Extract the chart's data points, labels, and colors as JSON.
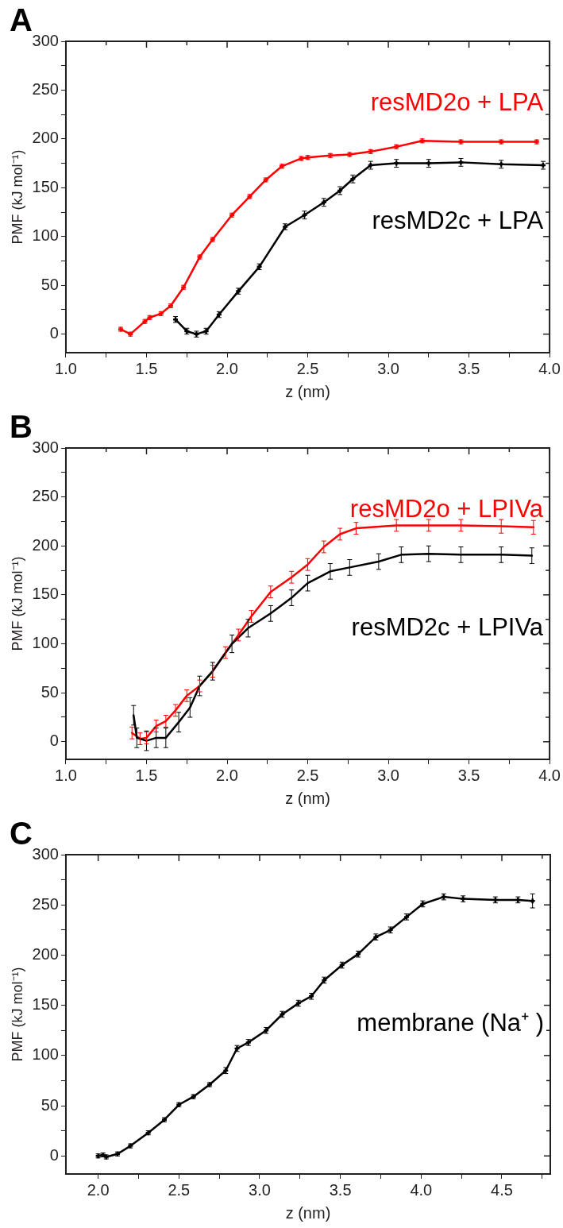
{
  "chart_data": [
    {
      "type": "line",
      "title": "A",
      "xlabel": "z (nm)",
      "ylabel": "PMF (kJ mol⁻¹)",
      "xlim": [
        1.0,
        4.0
      ],
      "ylim": [
        -19,
        300
      ],
      "xticks": [
        {
          "value": 1.0,
          "label": "1.0"
        },
        {
          "value": 1.25,
          "label": null
        },
        {
          "value": 1.5,
          "label": "1.5"
        },
        {
          "value": 1.75,
          "label": null
        },
        {
          "value": 2.0,
          "label": "2.0"
        },
        {
          "value": 2.25,
          "label": null
        },
        {
          "value": 2.5,
          "label": "2.5"
        },
        {
          "value": 2.75,
          "label": null
        },
        {
          "value": 3.0,
          "label": "3.0"
        },
        {
          "value": 3.25,
          "label": null
        },
        {
          "value": 3.5,
          "label": "3.5"
        },
        {
          "value": 3.75,
          "label": null
        },
        {
          "value": 4.0,
          "label": "4.0"
        }
      ],
      "yticks": [
        0,
        {
          "value": 25,
          "label": null
        },
        50,
        {
          "value": 75,
          "label": null
        },
        100,
        {
          "value": 125,
          "label": null
        },
        150,
        {
          "value": 175,
          "label": null
        },
        200,
        {
          "value": 225,
          "label": null
        },
        250,
        {
          "value": 275,
          "label": null
        },
        300
      ],
      "grid": false,
      "legend": false,
      "marker": "cross",
      "line_style": "solid",
      "series": [
        {
          "name": "resMD2o + LPA",
          "color": "#ff0000",
          "x": [
            1.34,
            1.4,
            1.49,
            1.52,
            1.59,
            1.65,
            1.73,
            1.83,
            1.91,
            2.03,
            2.14,
            2.24,
            2.34,
            2.46,
            2.5,
            2.64,
            2.76,
            2.89,
            3.05,
            3.21,
            3.45,
            3.7,
            3.92
          ],
          "values": [
            5,
            0,
            13,
            17,
            21,
            29,
            48,
            79,
            97,
            122,
            141,
            158,
            172,
            180,
            181,
            183,
            184,
            187,
            192,
            198,
            197,
            197,
            197
          ],
          "errors": [
            2,
            2,
            2,
            2,
            2,
            2,
            2,
            2,
            2,
            2,
            2,
            2,
            2,
            2,
            2,
            2,
            2,
            2,
            2,
            2,
            2,
            2,
            2
          ]
        },
        {
          "name": "resMD2c + LPA",
          "color": "#000000",
          "x": [
            1.68,
            1.75,
            1.81,
            1.87,
            1.95,
            2.07,
            2.2,
            2.36,
            2.48,
            2.6,
            2.7,
            2.78,
            2.89,
            3.05,
            3.25,
            3.45,
            3.7,
            3.96
          ],
          "values": [
            15,
            3,
            0,
            3,
            20,
            44,
            69,
            110,
            122,
            135,
            147,
            159,
            173,
            175,
            175,
            176,
            174,
            173
          ],
          "errors": [
            3,
            3,
            3,
            3,
            3,
            3,
            3,
            3,
            4,
            4,
            4,
            4,
            4,
            4,
            4,
            4,
            4,
            4
          ]
        }
      ]
    },
    {
      "type": "line",
      "title": "B",
      "xlabel": "z (nm)",
      "ylabel": "PMF (kJ mol⁻¹)",
      "xlim": [
        1.0,
        4.0
      ],
      "ylim": [
        -18,
        300
      ],
      "xticks": [
        {
          "value": 1.0,
          "label": "1.0"
        },
        {
          "value": 1.25,
          "label": null
        },
        {
          "value": 1.5,
          "label": "1.5"
        },
        {
          "value": 1.75,
          "label": null
        },
        {
          "value": 2.0,
          "label": "2.0"
        },
        {
          "value": 2.25,
          "label": null
        },
        {
          "value": 2.5,
          "label": "2.5"
        },
        {
          "value": 2.75,
          "label": null
        },
        {
          "value": 3.0,
          "label": "3.0"
        },
        {
          "value": 3.25,
          "label": null
        },
        {
          "value": 3.5,
          "label": "3.5"
        },
        {
          "value": 3.75,
          "label": null
        },
        {
          "value": 4.0,
          "label": "4.0"
        }
      ],
      "yticks": [
        0,
        {
          "value": 25,
          "label": null
        },
        50,
        {
          "value": 75,
          "label": null
        },
        100,
        {
          "value": 125,
          "label": null
        },
        150,
        {
          "value": 175,
          "label": null
        },
        200,
        {
          "value": 225,
          "label": null
        },
        250,
        {
          "value": 275,
          "label": null
        },
        300
      ],
      "grid": false,
      "legend": false,
      "line_style": "solid",
      "series": [
        {
          "name": "resMD2c + LPIVa",
          "color": "#000000",
          "x": [
            1.42,
            1.44,
            1.5,
            1.56,
            1.62,
            1.7,
            1.77,
            1.83,
            1.91,
            2.03,
            2.13,
            2.27,
            2.4,
            2.5,
            2.64,
            2.76,
            2.94,
            3.08,
            3.25,
            3.45,
            3.7,
            3.89
          ],
          "values": [
            27,
            4,
            1,
            4,
            4,
            20,
            35,
            57,
            72,
            100,
            116,
            131,
            147,
            162,
            174,
            178,
            184,
            191,
            192,
            191,
            191,
            190
          ],
          "errors": [
            10,
            10,
            10,
            10,
            10,
            10,
            10,
            10,
            9,
            9,
            9,
            8,
            8,
            8,
            8,
            8,
            8,
            8,
            8,
            8,
            8,
            8
          ]
        },
        {
          "name": "resMD2o + LPIVa",
          "color": "#ff0000",
          "x": [
            1.41,
            1.46,
            1.5,
            1.56,
            1.62,
            1.68,
            1.75,
            1.83,
            1.91,
            1.99,
            2.07,
            2.15,
            2.27,
            2.4,
            2.5,
            2.6,
            2.7,
            2.8,
            3.05,
            3.25,
            3.45,
            3.7,
            3.9
          ],
          "values": [
            9,
            3,
            4,
            16,
            21,
            32,
            47,
            57,
            72,
            91,
            109,
            128,
            153,
            168,
            181,
            199,
            212,
            218,
            221,
            221,
            221,
            220,
            219
          ],
          "errors": [
            6,
            6,
            6,
            6,
            6,
            6,
            6,
            6,
            6,
            6,
            6,
            6,
            6,
            6,
            6,
            6,
            6,
            6,
            6,
            6,
            6,
            7,
            7
          ]
        }
      ]
    },
    {
      "type": "line",
      "title": "C",
      "xlabel": "z (nm)",
      "ylabel": "PMF (kJ mol⁻¹)",
      "xlim": [
        1.8,
        4.8
      ],
      "ylim": [
        -18,
        300
      ],
      "xticks": [
        {
          "value": 2.0,
          "label": "2.0"
        },
        {
          "value": 2.25,
          "label": null
        },
        {
          "value": 2.5,
          "label": "2.5"
        },
        {
          "value": 2.75,
          "label": null
        },
        {
          "value": 3.0,
          "label": "3.0"
        },
        {
          "value": 3.25,
          "label": null
        },
        {
          "value": 3.5,
          "label": "3.5"
        },
        {
          "value": 3.75,
          "label": null
        },
        {
          "value": 4.0,
          "label": "4.0"
        },
        {
          "value": 4.25,
          "label": null
        },
        {
          "value": 4.5,
          "label": "4.5"
        },
        {
          "value": 4.75,
          "label": null
        }
      ],
      "yticks": [
        0,
        {
          "value": 25,
          "label": null
        },
        50,
        {
          "value": 75,
          "label": null
        },
        100,
        {
          "value": 125,
          "label": null
        },
        150,
        {
          "value": 175,
          "label": null
        },
        200,
        {
          "value": 225,
          "label": null
        },
        250,
        {
          "value": 275,
          "label": null
        },
        300
      ],
      "grid": false,
      "legend": false,
      "marker": "cross",
      "line_style": "solid",
      "series": [
        {
          "name": "membrane (Na⁺ )",
          "color": "#000000",
          "x": [
            2.0,
            2.03,
            2.05,
            2.12,
            2.2,
            2.31,
            2.41,
            2.5,
            2.59,
            2.69,
            2.79,
            2.86,
            2.93,
            3.04,
            3.14,
            3.24,
            3.32,
            3.4,
            3.51,
            3.61,
            3.72,
            3.81,
            3.91,
            4.01,
            4.14,
            4.26,
            4.46,
            4.6,
            4.69
          ],
          "values": [
            0,
            1,
            -1,
            2,
            10,
            23,
            36,
            51,
            59,
            71,
            85,
            107,
            113,
            125,
            141,
            152,
            159,
            175,
            190,
            201,
            218,
            225,
            238,
            251,
            258,
            256,
            255,
            255,
            254
          ],
          "errors": [
            2,
            2,
            2,
            2,
            2,
            2,
            2,
            2,
            2,
            2,
            3,
            3,
            3,
            3,
            3,
            3,
            3,
            3,
            3,
            3,
            3,
            3,
            3,
            3,
            3,
            3,
            3,
            3,
            7
          ]
        }
      ]
    }
  ]
}
